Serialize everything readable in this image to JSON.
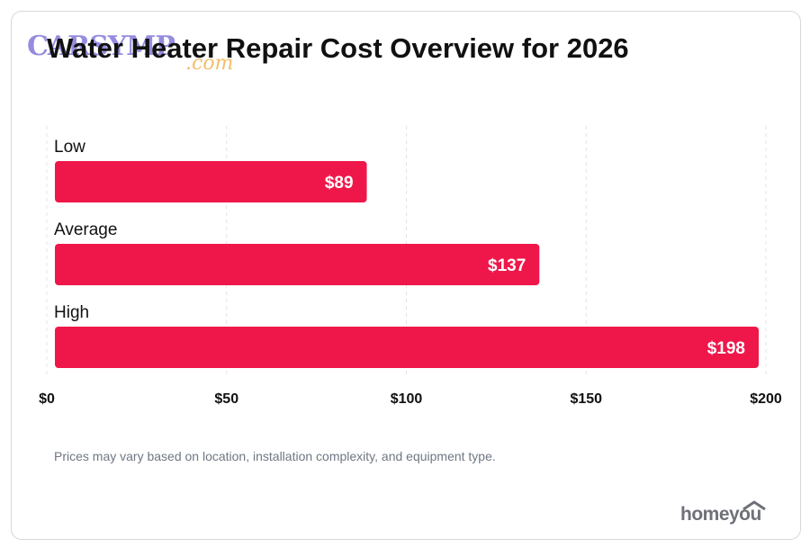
{
  "chart_data": {
    "type": "bar",
    "orientation": "horizontal",
    "title": "Water Heater Repair Cost Overview for 2026",
    "categories": [
      "Low",
      "Average",
      "High"
    ],
    "values": [
      89,
      137,
      198
    ],
    "value_labels": [
      "$89",
      "$137",
      "$198"
    ],
    "xlim": [
      0,
      200
    ],
    "ticks": [
      0,
      50,
      100,
      150,
      200
    ],
    "tick_labels": [
      "$0",
      "$50",
      "$100",
      "$150",
      "$200"
    ],
    "grid": "vertical-dashed",
    "bar_color": "#ef174a"
  },
  "footnote": "Prices may vary based on location, installation complexity, and equipment type.",
  "brand": "homeyou",
  "watermark": {
    "main": "CARSYMP",
    "sub": ".com"
  }
}
